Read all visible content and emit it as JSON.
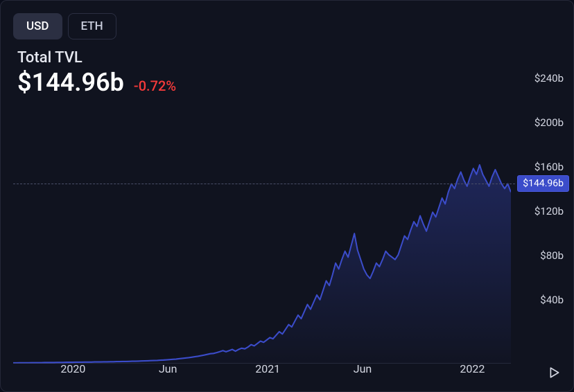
{
  "tabs": [
    {
      "label": "USD",
      "active": true
    },
    {
      "label": "ETH",
      "active": false
    }
  ],
  "header": {
    "title": "Total TVL",
    "value": "$144.96b",
    "change": "-0.72%",
    "change_color": "#f43a3a"
  },
  "chart": {
    "type": "area",
    "background_color": "#10131f",
    "line_color": "#3b4cca",
    "line_width": 2,
    "fill_top_color": "rgba(59,76,202,0.35)",
    "fill_bottom_color": "rgba(59,76,202,0.02)",
    "ylim": [
      0,
      260
    ],
    "yticks": [
      {
        "v": 240,
        "label": "$240b"
      },
      {
        "v": 200,
        "label": "$200b"
      },
      {
        "v": 160,
        "label": "$160b"
      },
      {
        "v": 120,
        "label": "$120b"
      },
      {
        "v": 80,
        "label": "$80b"
      },
      {
        "v": 40,
        "label": "$40b"
      }
    ],
    "xticks": [
      {
        "pos": 0.12,
        "label": "2020"
      },
      {
        "pos": 0.31,
        "label": "Jun"
      },
      {
        "pos": 0.51,
        "label": "2021"
      },
      {
        "pos": 0.7,
        "label": "Jun"
      },
      {
        "pos": 0.92,
        "label": "2022"
      }
    ],
    "current_value": 144.96,
    "current_label": "$144.96b",
    "series": [
      0.6,
      0.6,
      0.7,
      0.7,
      0.7,
      0.7,
      0.8,
      0.8,
      0.8,
      0.8,
      0.9,
      0.9,
      0.9,
      0.9,
      1.0,
      1.0,
      1.0,
      1.1,
      1.1,
      1.1,
      1.2,
      1.2,
      1.2,
      1.3,
      1.3,
      1.3,
      1.4,
      1.4,
      1.4,
      1.5,
      1.5,
      1.6,
      1.6,
      1.7,
      1.7,
      1.8,
      1.8,
      1.9,
      2.0,
      2.0,
      2.1,
      2.2,
      2.3,
      2.4,
      2.5,
      2.6,
      2.7,
      2.9,
      3.0,
      3.2,
      3.4,
      3.6,
      3.8,
      4.1,
      4.4,
      4.7,
      5.0,
      5.4,
      5.8,
      6.2,
      6.7,
      7.2,
      7.8,
      8.4,
      8.6,
      9.3,
      10.1,
      11.0,
      10.0,
      11.0,
      12.0,
      10.5,
      12.0,
      13.0,
      12.5,
      14.0,
      16.0,
      15.0,
      17.0,
      19.0,
      18.0,
      20.0,
      22.0,
      21.0,
      24.0,
      27.0,
      25.0,
      29.0,
      33.0,
      31.0,
      36.0,
      41.0,
      38.0,
      44.0,
      50.0,
      46.0,
      52.0,
      58.0,
      54.0,
      62.0,
      70.0,
      66.0,
      75.0,
      85.0,
      80.0,
      88.0,
      95.0,
      90.0,
      100.0,
      110.0,
      96.0,
      88.0,
      80.0,
      75.0,
      72.0,
      78.0,
      85.0,
      82.0,
      88.0,
      95.0,
      92.0,
      90.0,
      88.0,
      92.0,
      100.0,
      108.0,
      105.0,
      113.0,
      120.0,
      116.0,
      125.0,
      118.0,
      112.0,
      120.0,
      128.0,
      124.0,
      132.0,
      140.0,
      135.0,
      145.0,
      152.0,
      148.0,
      156.0,
      162.0,
      155.0,
      150.0,
      158.0,
      165.0,
      160.0,
      168.0,
      160.0,
      155.0,
      150.0,
      158.0,
      164.0,
      158.0,
      152.0,
      148.0,
      152.0,
      145.0
    ]
  },
  "colors": {
    "bg": "#10131f",
    "border": "#252838",
    "text_primary": "#ffffff",
    "text_secondary": "#d4d7e2",
    "tab_active_bg": "#2b2f42",
    "badge_bg": "#3b4cca",
    "dotted": "#4a4f68"
  }
}
